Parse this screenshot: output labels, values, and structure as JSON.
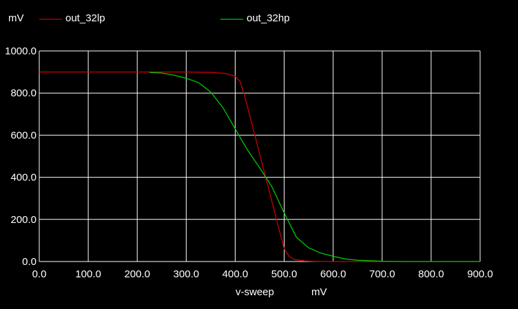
{
  "chart_data": {
    "type": "line",
    "y_unit": "mV",
    "xlabel": "v-sweep",
    "x_unit": "mV",
    "xlim": [
      0,
      900
    ],
    "ylim": [
      0,
      1000
    ],
    "x_ticks": [
      "0.0",
      "100.0",
      "200.0",
      "300.0",
      "400.0",
      "500.0",
      "600.0",
      "700.0",
      "800.0",
      "900.0"
    ],
    "y_ticks": [
      "0.0",
      "200.0",
      "400.0",
      "600.0",
      "800.0",
      "1000.0"
    ],
    "grid": true,
    "legend_position": "top",
    "background": "#000000",
    "series": [
      {
        "name": "out_32lp",
        "color": "#cc0000",
        "x": [
          0,
          100,
          200,
          300,
          350,
          380,
          400,
          410,
          420,
          430,
          440,
          450,
          460,
          470,
          480,
          490,
          500,
          510,
          520,
          540,
          560,
          600,
          700,
          800,
          900
        ],
        "y": [
          900,
          900,
          900,
          900,
          898,
          893,
          880,
          855,
          780,
          690,
          600,
          510,
          420,
          330,
          240,
          150,
          60,
          25,
          10,
          3,
          1,
          0,
          0,
          0,
          0
        ]
      },
      {
        "name": "out_32hp",
        "color": "#00cc00",
        "x": [
          225,
          250,
          275,
          300,
          325,
          350,
          375,
          400,
          425,
          450,
          475,
          500,
          525,
          550,
          575,
          600,
          625,
          650,
          700,
          750,
          800,
          850,
          900
        ],
        "y": [
          898,
          895,
          885,
          870,
          850,
          805,
          730,
          630,
          530,
          445,
          355,
          230,
          115,
          65,
          40,
          25,
          12,
          6,
          1,
          0,
          0,
          0,
          0
        ]
      }
    ]
  }
}
